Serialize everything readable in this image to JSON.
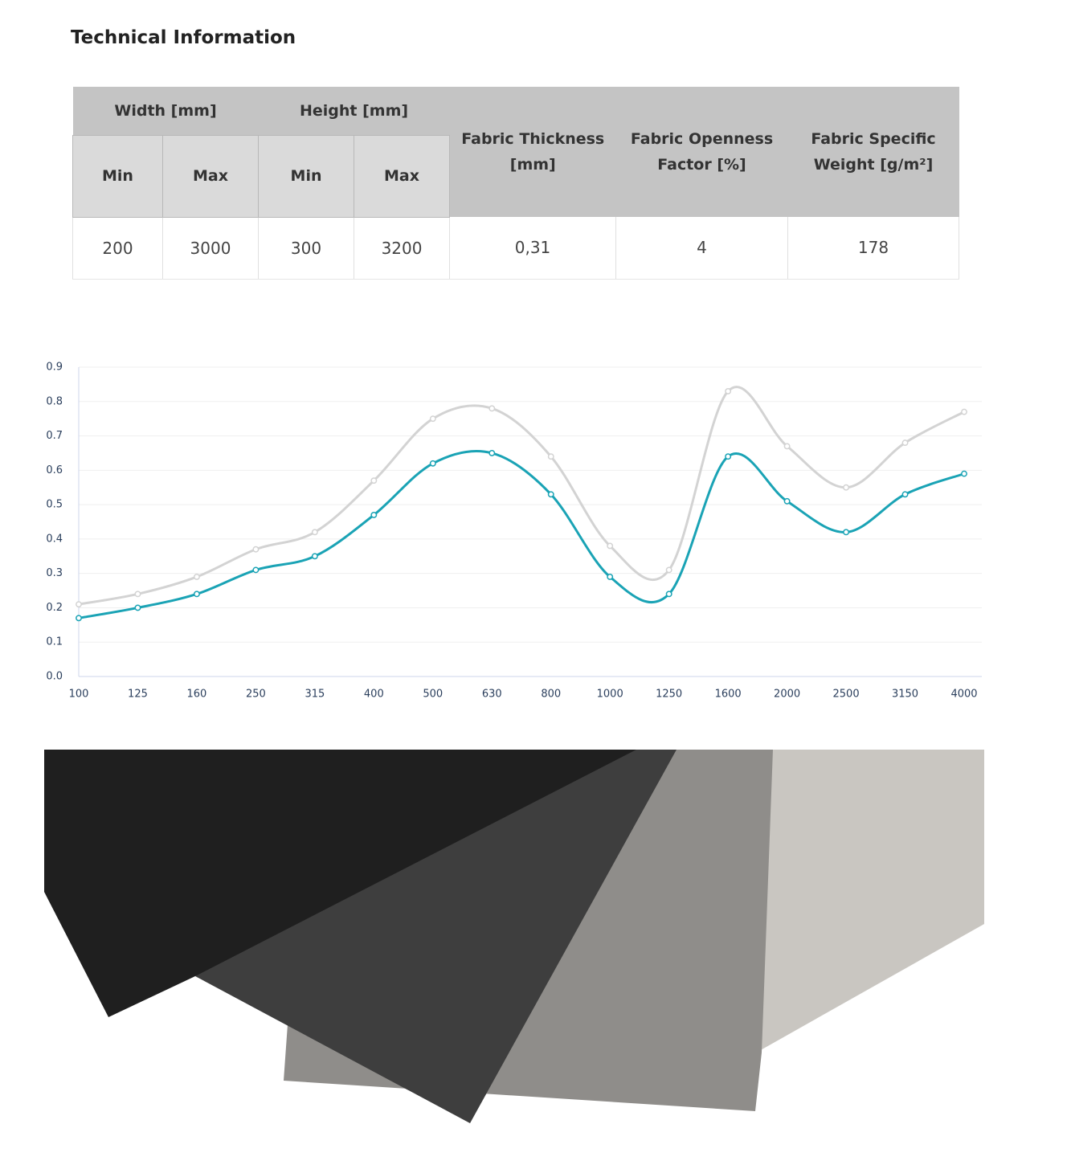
{
  "header": {
    "title": "Technical Information"
  },
  "table": {
    "group_headers": [
      "Width [mm]",
      "Height [mm]",
      "Fabric Thickness [mm]",
      "Fabric Openness Factor [%]",
      "Fabric Specific Weight [g/m²]"
    ],
    "sub_headers": [
      "Min",
      "Max",
      "Min",
      "Max"
    ],
    "rows": [
      [
        200,
        3000,
        300,
        3200,
        "0,31",
        4,
        178
      ]
    ]
  },
  "chart_data": {
    "type": "line",
    "categories": [
      "100",
      "125",
      "160",
      "250",
      "315",
      "400",
      "500",
      "630",
      "800",
      "1000",
      "1250",
      "1600",
      "2000",
      "2500",
      "3150",
      "4000"
    ],
    "series": [
      {
        "color": "#d3d3d3",
        "values": [
          0.21,
          0.24,
          0.29,
          0.37,
          0.42,
          0.57,
          0.75,
          0.78,
          0.64,
          0.38,
          0.31,
          0.83,
          0.67,
          0.55,
          0.68,
          0.77
        ]
      },
      {
        "color": "#1aa3b5",
        "values": [
          0.17,
          0.2,
          0.24,
          0.31,
          0.35,
          0.47,
          0.62,
          0.65,
          0.53,
          0.29,
          0.24,
          0.64,
          0.51,
          0.42,
          0.53,
          0.59
        ]
      }
    ],
    "ylim": [
      0,
      0.9
    ],
    "yticks": [
      {
        "value": 0,
        "label": "0.0"
      },
      0.1,
      0.2,
      0.3,
      0.4,
      0.5,
      0.6,
      0.7,
      0.8,
      0.9
    ],
    "grid": true
  }
}
